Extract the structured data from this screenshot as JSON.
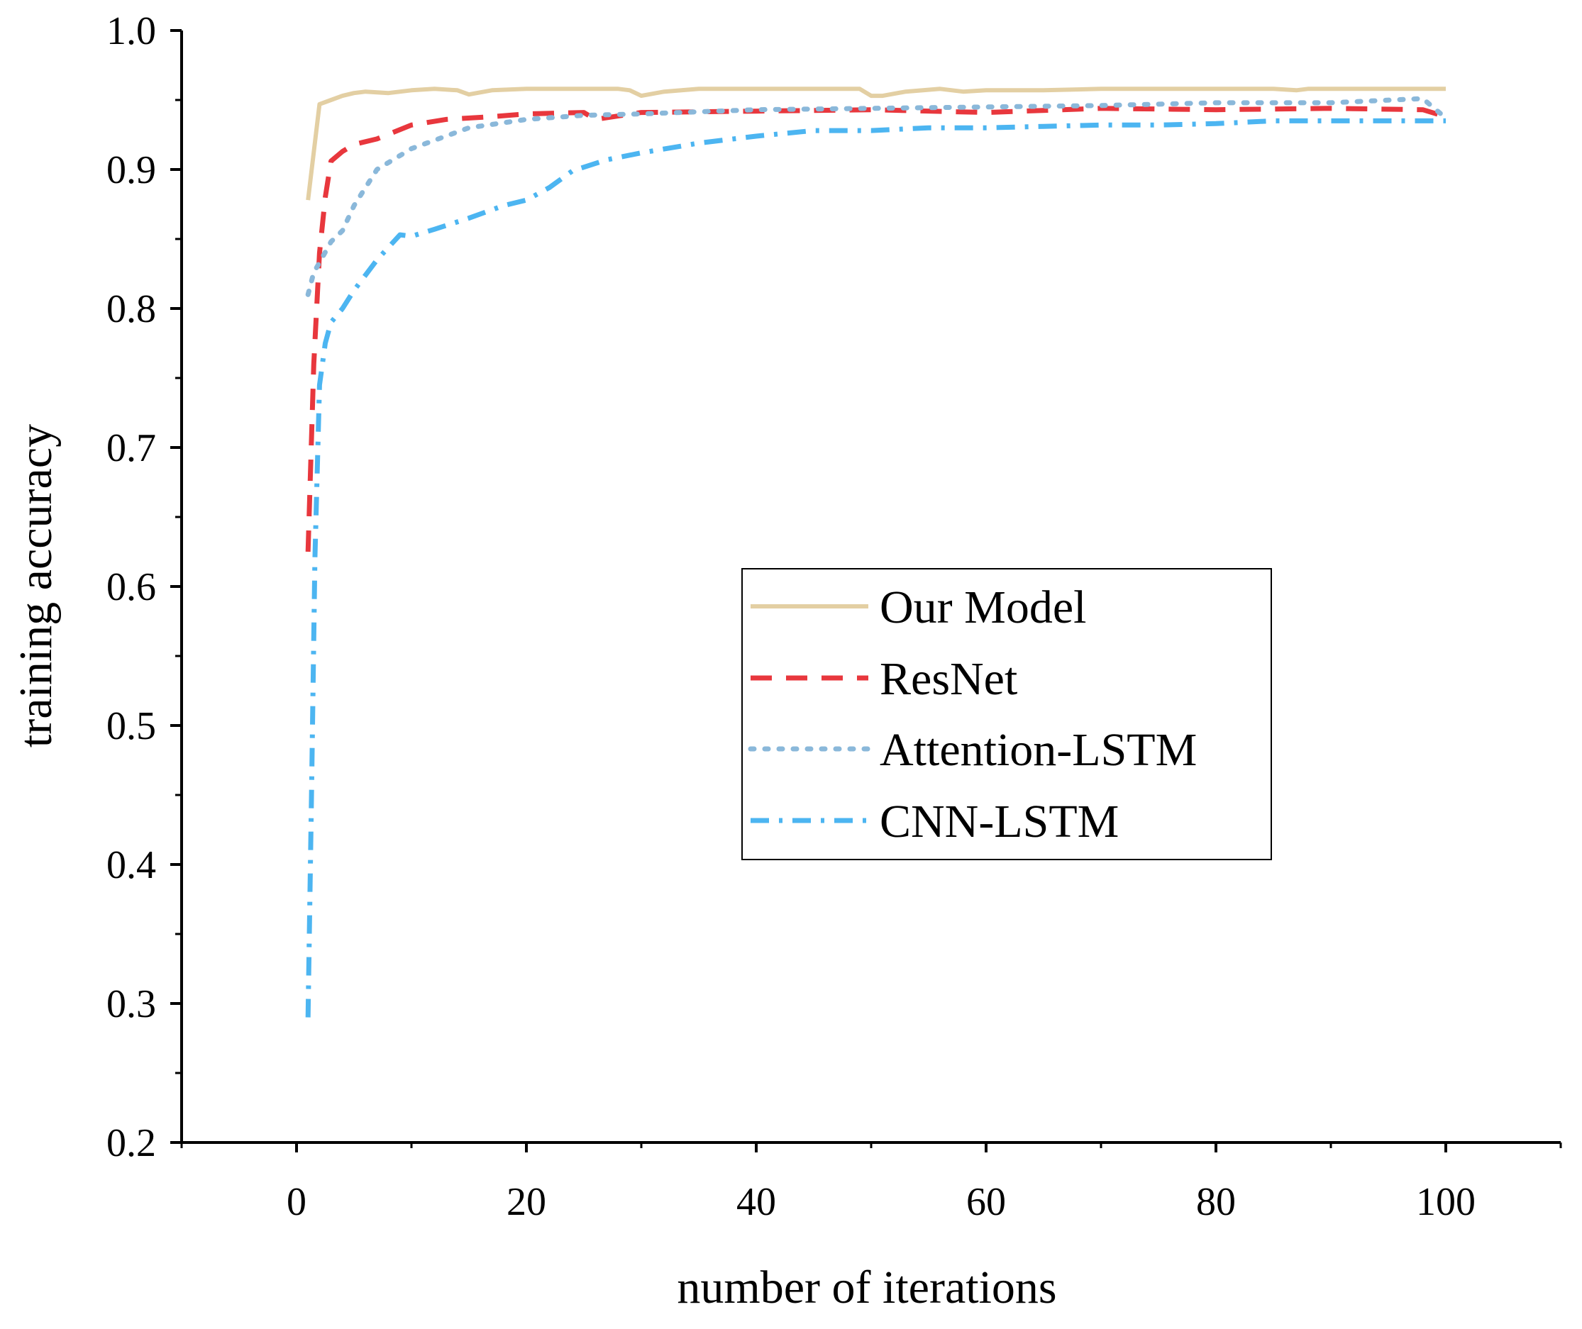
{
  "chart_data": {
    "type": "line",
    "title": "",
    "xlabel": "number of iterations",
    "ylabel": "training accuracy",
    "xlim": [
      -10,
      110
    ],
    "ylim": [
      0.2,
      1.0
    ],
    "x_ticks": [
      0,
      20,
      40,
      60,
      80,
      100
    ],
    "x_tick_labels": [
      "0",
      "20",
      "40",
      "60",
      "80",
      "100"
    ],
    "y_ticks": [
      0.2,
      0.3,
      0.4,
      0.5,
      0.6,
      0.7,
      0.8,
      0.9,
      1.0
    ],
    "y_tick_labels": [
      "0.2",
      "0.3",
      "0.4",
      "0.5",
      "0.6",
      "0.7",
      "0.8",
      "0.9",
      "1.0"
    ],
    "grid": false,
    "legend_position": "center-right",
    "series": [
      {
        "name": "Our Model",
        "color": "#e3cfa3",
        "style": "solid",
        "x": [
          1,
          2,
          3,
          4,
          5,
          6,
          8,
          10,
          12,
          14,
          15,
          17,
          20,
          25,
          28,
          29,
          30,
          32,
          35,
          40,
          45,
          49,
          50,
          51,
          53,
          56,
          58,
          60,
          65,
          70,
          75,
          80,
          85,
          87,
          88,
          90,
          95,
          100
        ],
        "values": [
          0.878,
          0.947,
          0.95,
          0.953,
          0.955,
          0.956,
          0.955,
          0.957,
          0.958,
          0.957,
          0.954,
          0.957,
          0.958,
          0.958,
          0.958,
          0.957,
          0.953,
          0.956,
          0.958,
          0.958,
          0.958,
          0.958,
          0.953,
          0.953,
          0.956,
          0.958,
          0.956,
          0.957,
          0.957,
          0.958,
          0.958,
          0.958,
          0.958,
          0.957,
          0.958,
          0.958,
          0.958,
          0.958
        ]
      },
      {
        "name": "ResNet",
        "color": "#e8373d",
        "style": "dashed",
        "x": [
          1,
          1.5,
          2,
          2.5,
          3,
          4,
          5,
          7,
          10,
          13,
          17,
          20,
          25,
          26,
          30,
          40,
          50,
          60,
          70,
          80,
          90,
          98,
          100
        ],
        "values": [
          0.625,
          0.76,
          0.84,
          0.88,
          0.906,
          0.913,
          0.918,
          0.922,
          0.932,
          0.936,
          0.938,
          0.94,
          0.941,
          0.936,
          0.941,
          0.942,
          0.943,
          0.941,
          0.944,
          0.943,
          0.944,
          0.943,
          0.938
        ]
      },
      {
        "name": "Attention-LSTM",
        "color": "#8ab8da",
        "style": "dotted",
        "x": [
          1,
          1.5,
          2,
          3,
          4,
          5,
          7,
          10,
          15,
          20,
          25,
          30,
          40,
          50,
          60,
          70,
          80,
          90,
          98,
          100
        ],
        "values": [
          0.81,
          0.826,
          0.833,
          0.848,
          0.856,
          0.874,
          0.9,
          0.915,
          0.93,
          0.936,
          0.939,
          0.94,
          0.943,
          0.944,
          0.945,
          0.946,
          0.948,
          0.948,
          0.951,
          0.937
        ]
      },
      {
        "name": "CNN-LSTM",
        "color": "#4cb5f1",
        "style": "dashdot",
        "x": [
          1,
          1.3,
          1.6,
          2,
          2.5,
          3,
          4,
          5,
          7,
          9,
          10,
          12,
          15,
          18,
          20,
          22,
          24,
          27,
          30,
          35,
          40,
          45,
          50,
          55,
          60,
          65,
          70,
          75,
          80,
          85,
          90,
          95,
          100
        ],
        "values": [
          0.29,
          0.45,
          0.62,
          0.745,
          0.775,
          0.79,
          0.8,
          0.813,
          0.835,
          0.853,
          0.852,
          0.857,
          0.865,
          0.874,
          0.878,
          0.887,
          0.899,
          0.907,
          0.912,
          0.919,
          0.924,
          0.928,
          0.928,
          0.93,
          0.93,
          0.931,
          0.932,
          0.932,
          0.933,
          0.935,
          0.935,
          0.935,
          0.935
        ]
      }
    ]
  }
}
